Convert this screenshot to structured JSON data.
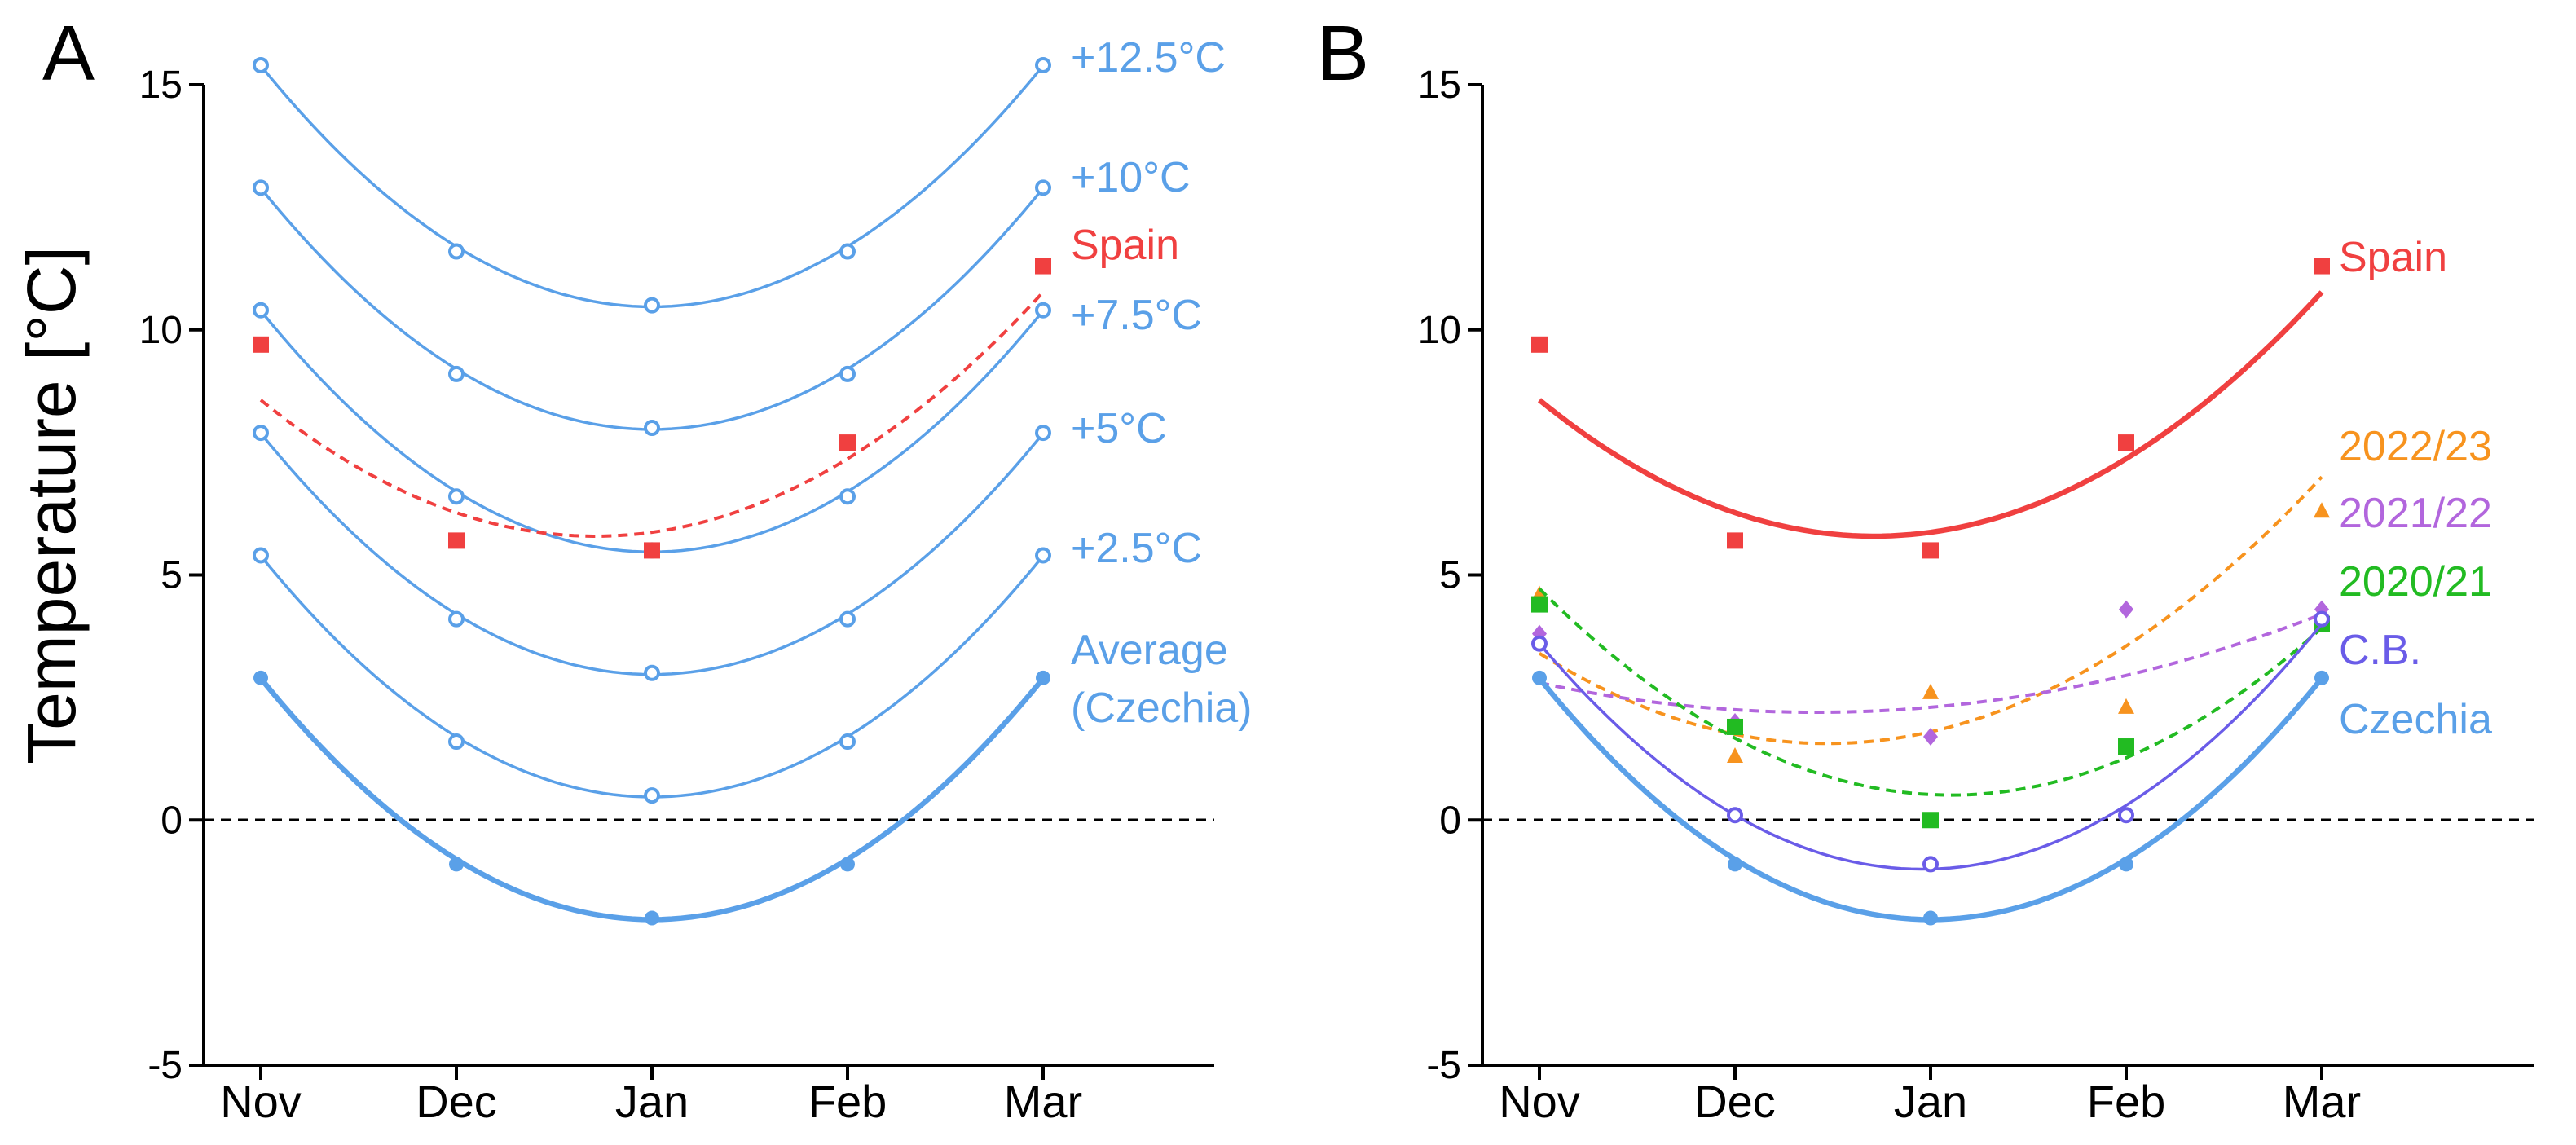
{
  "figure": {
    "ylabel": "Temperature [°C]",
    "panel_a_letter": "A",
    "panel_b_letter": "B"
  },
  "chart_data": [
    {
      "type": "line",
      "panel": "A",
      "ylabel": "Temperature [°C]",
      "xlabel": "",
      "categories": [
        "Nov",
        "Dec",
        "Jan",
        "Feb",
        "Mar"
      ],
      "x_range": [
        -0.2,
        5.0
      ],
      "ylim": [
        -5,
        15
      ],
      "yticks": [
        -5,
        0,
        5,
        10,
        15
      ],
      "ytick_labels": [
        "-5",
        "0",
        "5",
        "10",
        "15"
      ],
      "zero_line": 0,
      "series": [
        {
          "name": "Average (Czechia)",
          "label_lines": [
            "Average",
            "(Czechia)"
          ],
          "color": "#5aa0e8",
          "marker": "circle",
          "fit": "solid-thick",
          "values": [
            2.9,
            -0.9,
            -2.0,
            -0.9,
            2.9
          ],
          "fit_coef": [
            -2.03,
            0.0,
            1.23
          ]
        },
        {
          "name": "+2.5°C",
          "label_lines": [
            "+2.5°C"
          ],
          "color": "#5aa0e8",
          "marker": "circle-open",
          "fit": "solid",
          "values": [
            5.4,
            1.6,
            0.5,
            1.6,
            5.4
          ],
          "fit_coef": [
            0.47,
            0.0,
            1.23
          ]
        },
        {
          "name": "+5°C",
          "label_lines": [
            "+5°C"
          ],
          "color": "#5aa0e8",
          "marker": "circle-open",
          "fit": "solid",
          "values": [
            7.9,
            4.1,
            3.0,
            4.1,
            7.9
          ],
          "fit_coef": [
            2.97,
            0.0,
            1.23
          ]
        },
        {
          "name": "+7.5°C",
          "label_lines": [
            "+7.5°C"
          ],
          "color": "#5aa0e8",
          "marker": "circle-open",
          "fit": "solid",
          "values": [
            10.4,
            6.6,
            5.5,
            6.6,
            10.4
          ],
          "fit_coef": [
            5.47,
            0.0,
            1.23
          ]
        },
        {
          "name": "+10°C",
          "label_lines": [
            "+10°C"
          ],
          "color": "#5aa0e8",
          "marker": "circle-open",
          "fit": "solid",
          "values": [
            12.9,
            9.1,
            8.0,
            9.1,
            12.9
          ],
          "fit_coef": [
            7.97,
            0.0,
            1.23
          ]
        },
        {
          "name": "+12.5°C",
          "label_lines": [
            "+12.5°C"
          ],
          "color": "#5aa0e8",
          "marker": "circle-open",
          "fit": "solid",
          "values": [
            15.4,
            11.6,
            10.5,
            11.6,
            15.4
          ],
          "fit_coef": [
            10.47,
            0.0,
            1.23
          ]
        },
        {
          "name": "Spain",
          "label_lines": [
            "Spain"
          ],
          "color": "#f04040",
          "marker": "square",
          "fit": "dashed",
          "values": [
            9.7,
            5.7,
            5.5,
            7.7,
            11.3
          ],
          "fit_coef": [
            5.87,
            0.55,
            0.95
          ]
        }
      ]
    },
    {
      "type": "line",
      "panel": "B",
      "ylabel": "",
      "xlabel": "",
      "categories": [
        "Nov",
        "Dec",
        "Jan",
        "Feb",
        "Mar"
      ],
      "x_range": [
        -0.2,
        5.0
      ],
      "ylim": [
        -5,
        15
      ],
      "yticks": [
        -5,
        0,
        5,
        10,
        15
      ],
      "ytick_labels": [
        "-5",
        "0",
        "5",
        "10",
        "15"
      ],
      "zero_line": 0,
      "series": [
        {
          "name": "Spain",
          "label_lines": [
            "Spain"
          ],
          "color": "#f04040",
          "marker": "square",
          "fit": "solid-thick",
          "values": [
            9.7,
            5.7,
            5.5,
            7.7,
            11.3
          ],
          "fit_coef": [
            5.87,
            0.55,
            0.95
          ]
        },
        {
          "name": "2022/23",
          "label_lines": [
            "2022/23"
          ],
          "color": "#f7931e",
          "marker": "triangle",
          "fit": "dashed",
          "values": [
            4.6,
            1.3,
            2.6,
            2.3,
            6.3
          ],
          "fit_coef": [
            1.8,
            0.9,
            0.85
          ]
        },
        {
          "name": "2021/22",
          "label_lines": [
            "2021/22"
          ],
          "color": "#b266dd",
          "marker": "diamond",
          "fit": "dashed",
          "values": [
            3.8,
            2.0,
            1.7,
            4.3,
            4.3
          ],
          "fit_coef": [
            2.3,
            0.35,
            0.3
          ]
        },
        {
          "name": "2020/21",
          "label_lines": [
            "2020/21"
          ],
          "color": "#22bb22",
          "marker": "square",
          "fit": "dashed",
          "values": [
            4.4,
            1.9,
            0.0,
            1.5,
            4.0
          ],
          "fit_coef": [
            0.52,
            -0.2,
            0.95
          ]
        },
        {
          "name": "C.B.",
          "label_lines": [
            "C.B."
          ],
          "color": "#6a5ce8",
          "marker": "circle-open",
          "fit": "solid",
          "values": [
            3.6,
            0.1,
            -0.9,
            0.1,
            4.1
          ],
          "fit_coef": [
            -1.0,
            0.1,
            1.2
          ]
        },
        {
          "name": "Czechia",
          "label_lines": [
            "Czechia"
          ],
          "color": "#5aa0e8",
          "marker": "circle",
          "fit": "solid-thick",
          "values": [
            2.9,
            -0.9,
            -2.0,
            -0.9,
            2.9
          ],
          "fit_coef": [
            -2.03,
            0.0,
            1.23
          ]
        }
      ]
    }
  ]
}
